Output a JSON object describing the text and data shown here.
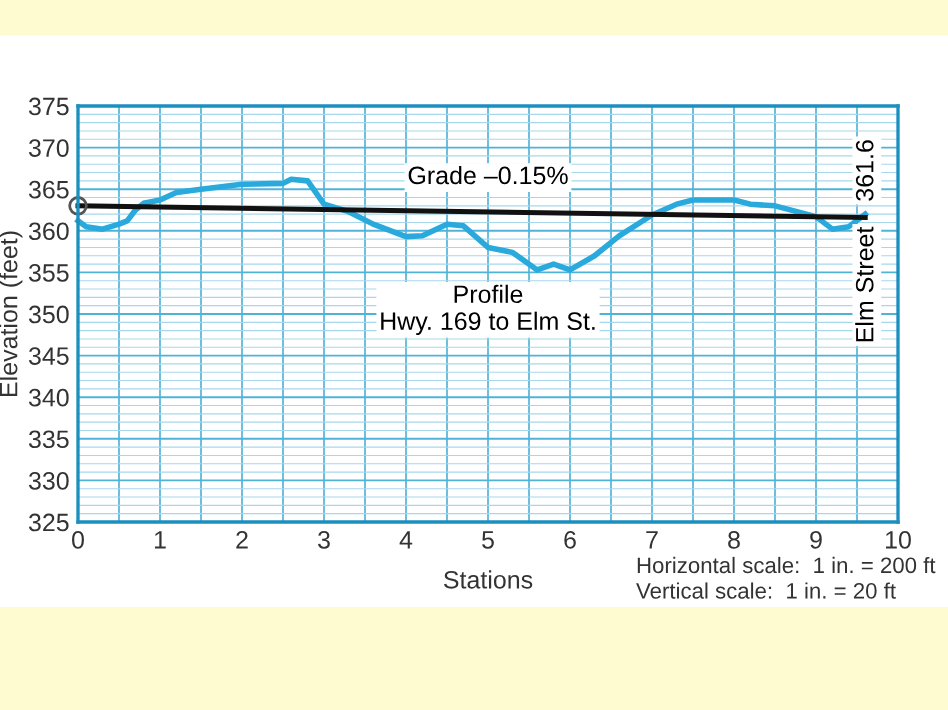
{
  "chart_data": {
    "type": "line",
    "xlabel": "Stations",
    "ylabel": "Elevation (feet)",
    "xlim": [
      0,
      10
    ],
    "ylim": [
      325,
      375
    ],
    "xticks": [
      0,
      {
        "value": 0.5,
        "label": null
      },
      1,
      {
        "value": 1.5,
        "label": null
      },
      2,
      {
        "value": 2.5,
        "label": null
      },
      3,
      {
        "value": 3.5,
        "label": null
      },
      4,
      {
        "value": 4.5,
        "label": null
      },
      5,
      {
        "value": 5.5,
        "label": null
      },
      6,
      {
        "value": 6.5,
        "label": null
      },
      7,
      {
        "value": 7.5,
        "label": null
      },
      8,
      {
        "value": 8.5,
        "label": null
      },
      9,
      {
        "value": 9.5,
        "label": null
      },
      10
    ],
    "yticks": [
      325,
      {
        "value": 326,
        "label": null
      },
      {
        "value": 327,
        "label": null
      },
      {
        "value": 328,
        "label": null
      },
      {
        "value": 329,
        "label": null
      },
      330,
      {
        "value": 331,
        "label": null
      },
      {
        "value": 332,
        "label": null
      },
      {
        "value": 333,
        "label": null
      },
      {
        "value": 334,
        "label": null
      },
      335,
      {
        "value": 336,
        "label": null
      },
      {
        "value": 337,
        "label": null
      },
      {
        "value": 338,
        "label": null
      },
      {
        "value": 339,
        "label": null
      },
      340,
      {
        "value": 341,
        "label": null
      },
      {
        "value": 342,
        "label": null
      },
      {
        "value": 343,
        "label": null
      },
      {
        "value": 344,
        "label": null
      },
      345,
      {
        "value": 346,
        "label": null
      },
      {
        "value": 347,
        "label": null
      },
      {
        "value": 348,
        "label": null
      },
      {
        "value": 349,
        "label": null
      },
      350,
      {
        "value": 351,
        "label": null
      },
      {
        "value": 352,
        "label": null
      },
      {
        "value": 353,
        "label": null
      },
      {
        "value": 354,
        "label": null
      },
      355,
      {
        "value": 356,
        "label": null
      },
      {
        "value": 357,
        "label": null
      },
      {
        "value": 358,
        "label": null
      },
      {
        "value": 359,
        "label": null
      },
      360,
      {
        "value": 361,
        "label": null
      },
      {
        "value": 362,
        "label": null
      },
      {
        "value": 363,
        "label": null
      },
      {
        "value": 364,
        "label": null
      },
      365,
      {
        "value": 366,
        "label": null
      },
      {
        "value": 367,
        "label": null
      },
      {
        "value": 368,
        "label": null
      },
      {
        "value": 369,
        "label": null
      },
      370,
      {
        "value": 371,
        "label": null
      },
      {
        "value": 372,
        "label": null
      },
      {
        "value": 373,
        "label": null
      },
      {
        "value": 374,
        "label": null
      },
      375
    ],
    "grid": true,
    "legend": false,
    "series": [
      {
        "color": "#2aa9dc",
        "marker": "none",
        "x": [
          0,
          0.1,
          0.3,
          0.5,
          0.6,
          0.7,
          0.8,
          1.0,
          1.2,
          1.5,
          2.0,
          2.5,
          2.6,
          2.8,
          3.0,
          3.3,
          3.6,
          4.0,
          4.2,
          4.5,
          4.7,
          5.0,
          5.3,
          5.6,
          5.8,
          6.0,
          6.3,
          6.6,
          7.0,
          7.3,
          7.5,
          8.0,
          8.2,
          8.5,
          9.0,
          9.2,
          9.4,
          9.6
        ],
        "values": [
          361.2,
          360.5,
          360.2,
          360.8,
          361.2,
          362.5,
          363.3,
          363.7,
          364.6,
          365.0,
          365.6,
          365.7,
          366.2,
          366.0,
          363.2,
          362.3,
          360.8,
          359.3,
          359.4,
          360.8,
          360.6,
          358.0,
          357.4,
          355.3,
          356.0,
          355.3,
          357.0,
          359.4,
          361.9,
          363.2,
          363.7,
          363.7,
          363.2,
          363.0,
          361.7,
          360.2,
          360.5,
          362.0
        ]
      },
      {
        "color": "#111111",
        "marker": "circle",
        "x": [
          0,
          9.6
        ],
        "values": [
          363.0,
          361.6
        ]
      }
    ],
    "annotations": [
      "Grade –0.15%",
      "361.6",
      "Elm Street",
      "Profile\nHwy. 169 to Elm St.",
      "Horizontal scale:  1 in. = 200 ft\nVertical scale:  1 in. = 20 ft"
    ]
  }
}
